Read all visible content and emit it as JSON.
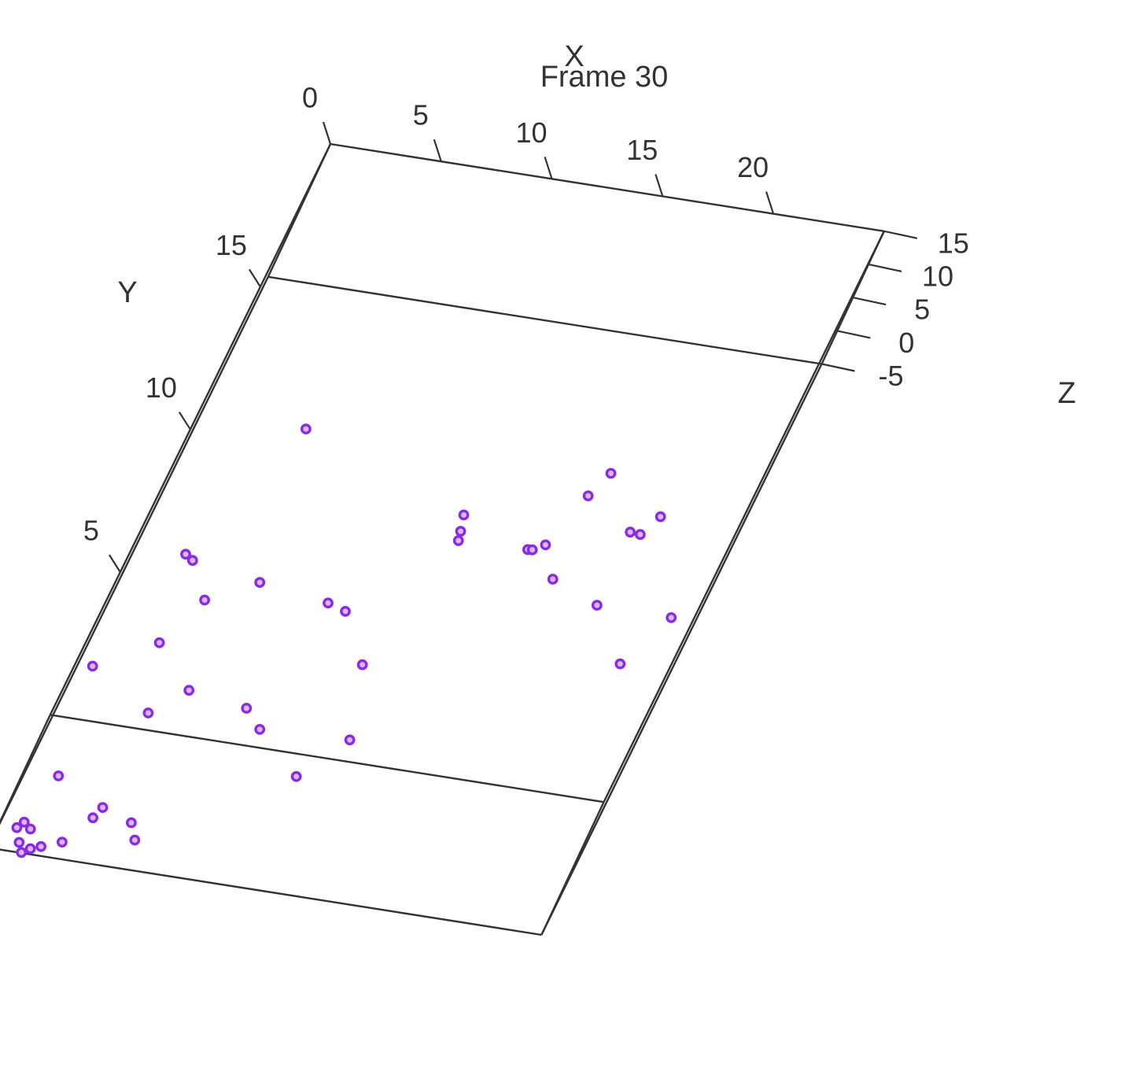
{
  "chart_data": {
    "type": "scatter",
    "subtype": "3d-scatter",
    "title": "Frame 30",
    "x_axis": {
      "label": "X",
      "ticks": [
        "0",
        "5",
        "10",
        "15",
        "20"
      ]
    },
    "y_axis": {
      "label": "Y",
      "ticks": [
        "5",
        "10",
        "15"
      ]
    },
    "z_axis": {
      "label": "Z",
      "ticks": [
        "-5",
        "0",
        "5",
        "10",
        "15"
      ]
    },
    "colors": {
      "point_fill": "#d9b8f2",
      "point_stroke": "#8a2be2",
      "box": "#333333"
    },
    "grid": false,
    "points": [
      [
        0.7,
        4.7,
        2.5
      ],
      [
        4.8,
        12.0,
        9.0
      ],
      [
        2.3,
        8.7,
        3.0
      ],
      [
        3.0,
        6.5,
        -0.5
      ],
      [
        2.7,
        9.3,
        -0.3
      ],
      [
        4.0,
        8.7,
        -3.0
      ],
      [
        6.0,
        7.7,
        5.0
      ],
      [
        5.2,
        5.8,
        -3.5
      ],
      [
        4.0,
        3.3,
        3.2
      ],
      [
        9.3,
        6.8,
        7.5
      ],
      [
        10.2,
        6.5,
        8.0
      ],
      [
        12.0,
        5.2,
        6.5
      ],
      [
        8.0,
        4.7,
        0.0
      ],
      [
        13.0,
        3.5,
        3.0
      ],
      [
        11.5,
        2.5,
        1.0
      ],
      [
        9.0,
        3.8,
        1.2
      ],
      [
        17.2,
        10.5,
        4.5
      ],
      [
        18.2,
        10.0,
        2.0
      ],
      [
        20.6,
        8.8,
        4.5
      ],
      [
        21.0,
        9.7,
        11.5
      ],
      [
        20.5,
        11.0,
        6.0
      ],
      [
        18.5,
        12.0,
        9.5
      ],
      [
        18.0,
        11.5,
        8.0
      ],
      [
        21.5,
        9.8,
        14.0
      ],
      [
        24.0,
        7.5,
        10.0
      ],
      [
        22.8,
        6.2,
        8.0
      ],
      [
        13.5,
        8.8,
        10.5
      ],
      [
        13.2,
        9.5,
        11.2
      ],
      [
        13.4,
        9.0,
        11.0
      ],
      [
        16.6,
        8.4,
        12.5
      ],
      [
        16.8,
        8.3,
        13.0
      ],
      [
        1.5,
        2.0,
        -2.0
      ],
      [
        3.8,
        1.0,
        -2.8
      ],
      [
        4.0,
        1.2,
        -2.0
      ],
      [
        5.5,
        1.5,
        -4.8
      ],
      [
        6.0,
        1.0,
        -5.0
      ],
      [
        0.8,
        0.8,
        -5.0
      ],
      [
        1.2,
        0.4,
        -5.3
      ],
      [
        1.8,
        0.3,
        -5.5
      ],
      [
        1.5,
        0.2,
        -5.8
      ],
      [
        2.2,
        0.4,
        -5.4
      ],
      [
        1.0,
        0.9,
        -4.5
      ],
      [
        1.4,
        0.8,
        -4.9
      ],
      [
        3.0,
        0.4,
        -4.3
      ]
    ]
  }
}
